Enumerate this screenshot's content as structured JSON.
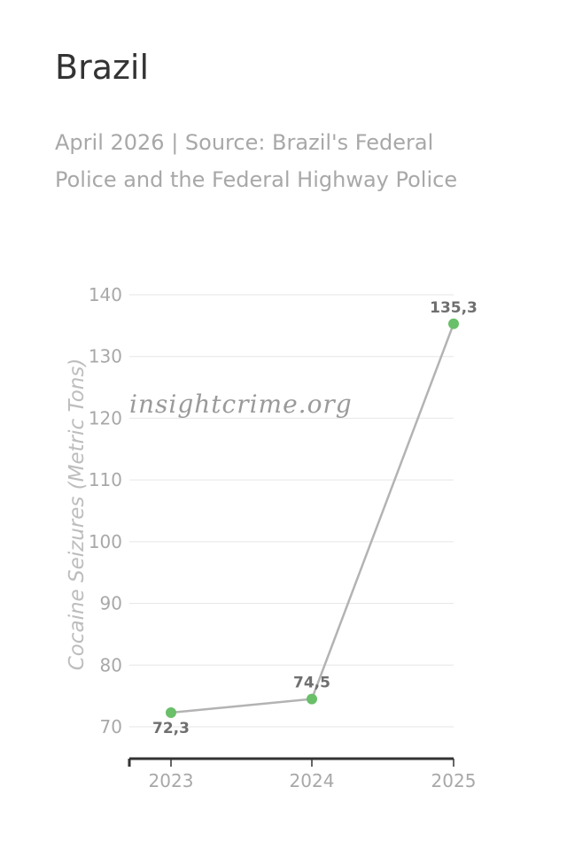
{
  "header": {
    "title": "Brazil",
    "subtitle": "April 2026 | Source: Brazil's Federal Police and the Federal Highway Police"
  },
  "watermark": "insightcrime.org",
  "colors": {
    "line": "#b3b3b3",
    "marker": "#6abf69",
    "grid": "#e6e6e6",
    "axis": "#333333"
  },
  "chart_data": {
    "type": "line",
    "title": "Brazil",
    "subtitle": "April 2026 | Source: Brazil's Federal Police and the Federal Highway Police",
    "xlabel": "",
    "ylabel": "Cocaine Seizures (Metric Tons)",
    "categories": [
      "2023",
      "2024",
      "2025"
    ],
    "series": [
      {
        "values": [
          72.3,
          74.5,
          135.3
        ],
        "labels": [
          "72,3",
          "74,5",
          "135,3"
        ]
      }
    ],
    "ylim": [
      70,
      140
    ],
    "yticks": [
      70,
      80,
      90,
      100,
      110,
      120,
      130,
      140
    ],
    "grid": true,
    "legend": "none"
  }
}
